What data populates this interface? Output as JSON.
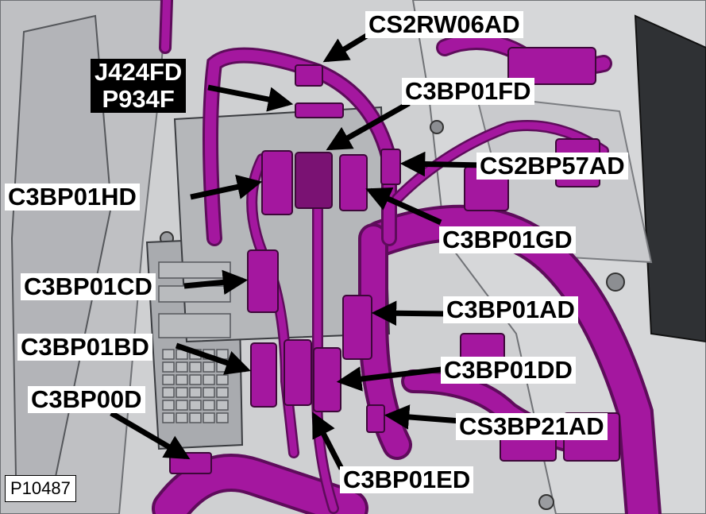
{
  "figure_id": "P10487",
  "colors": {
    "harness": "#a4179f",
    "harness_light": "#d96fd4",
    "harness_dark": "#5e0c5b",
    "panel": "#c6c7c9",
    "panel_dark": "#5c5e63",
    "arrow": "#000000"
  },
  "callouts": [
    {
      "id": "cs2rw06ad",
      "text": "CS2RW06AD",
      "style": "light"
    },
    {
      "id": "j424fd",
      "lines": [
        "J424FD",
        "P934F"
      ],
      "style": "dark"
    },
    {
      "id": "c3bp01fd",
      "text": "C3BP01FD",
      "style": "light"
    },
    {
      "id": "cs2bp57ad",
      "text": "CS2BP57AD",
      "style": "light"
    },
    {
      "id": "c3bp01hd",
      "text": "C3BP01HD",
      "style": "light"
    },
    {
      "id": "c3bp01gd",
      "text": "C3BP01GD",
      "style": "light"
    },
    {
      "id": "c3bp01cd",
      "text": "C3BP01CD",
      "style": "light"
    },
    {
      "id": "c3bp01ad",
      "text": "C3BP01AD",
      "style": "light"
    },
    {
      "id": "c3bp01bd",
      "text": "C3BP01BD",
      "style": "light"
    },
    {
      "id": "c3bp01dd",
      "text": "C3BP01DD",
      "style": "light"
    },
    {
      "id": "c3bp00d",
      "text": "C3BP00D",
      "style": "light"
    },
    {
      "id": "cs3bp21ad",
      "text": "CS3BP21AD",
      "style": "light"
    },
    {
      "id": "c3bp01ed",
      "text": "C3BP01ED",
      "style": "light"
    }
  ]
}
